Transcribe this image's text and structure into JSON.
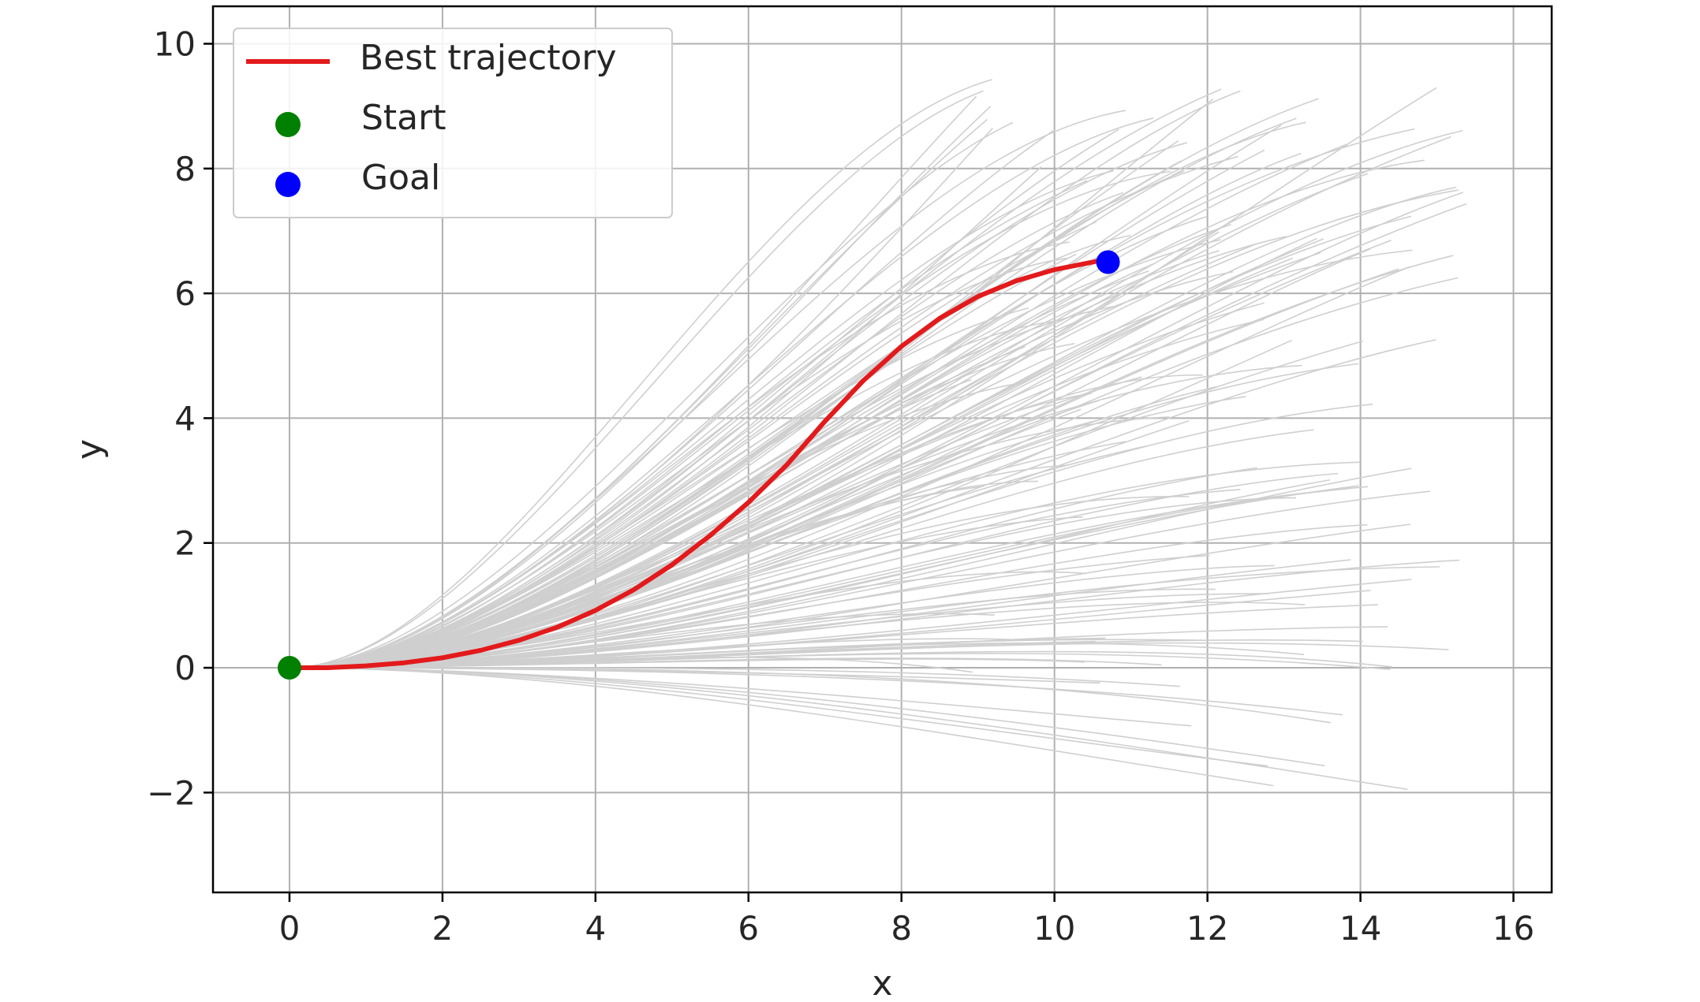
{
  "chart_data": {
    "type": "line",
    "title": "",
    "xlabel": "x",
    "ylabel": "y",
    "xlim": [
      -1,
      16.5
    ],
    "ylim": [
      -3.6,
      10.6
    ],
    "xticks": [
      0,
      2,
      4,
      6,
      8,
      10,
      12,
      14,
      16
    ],
    "yticks": [
      -2,
      0,
      2,
      4,
      6,
      8,
      10
    ],
    "ytick_labels": [
      "−2",
      "0",
      "2",
      "4",
      "6",
      "8",
      "10"
    ],
    "grid": true,
    "legend_position": "top-left",
    "series": [
      {
        "name": "Best trajectory",
        "kind": "line",
        "color": "#e31a1c",
        "x": [
          0,
          0.5,
          1,
          1.5,
          2,
          2.5,
          3,
          3.5,
          4,
          4.5,
          5,
          5.5,
          6,
          6.5,
          7,
          7.5,
          8,
          8.5,
          9,
          9.5,
          10,
          10.7
        ],
        "y": [
          0,
          0,
          0.03,
          0.08,
          0.16,
          0.28,
          0.44,
          0.65,
          0.92,
          1.25,
          1.65,
          2.12,
          2.65,
          3.25,
          3.95,
          4.6,
          5.15,
          5.6,
          5.95,
          6.2,
          6.38,
          6.55
        ]
      },
      {
        "name": "Start",
        "kind": "point",
        "color": "#008000",
        "x": [
          0
        ],
        "y": [
          0
        ]
      },
      {
        "name": "Goal",
        "kind": "point",
        "color": "#0000ff",
        "x": [
          10.7
        ],
        "y": [
          6.5
        ]
      }
    ],
    "sampled_trajectories": {
      "color": "#cfcfcf",
      "count": 150,
      "start": [
        0,
        0
      ],
      "end_x_range": [
        8.9,
        15.4
      ],
      "end_y_range": [
        -2.5,
        9.5
      ]
    }
  }
}
